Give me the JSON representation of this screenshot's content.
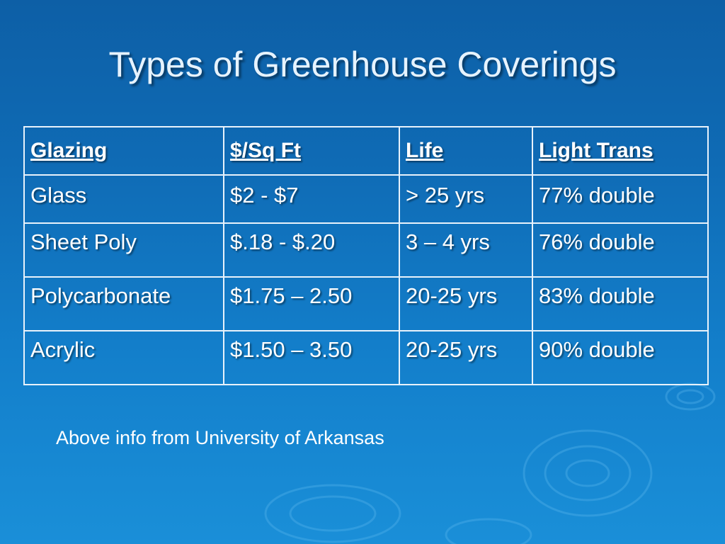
{
  "slide": {
    "title": "Types of Greenhouse Coverings",
    "note": "Above info from University of Arkansas"
  },
  "table": {
    "headers": [
      "Glazing",
      "$/Sq Ft",
      "Life",
      "Light Trans"
    ],
    "rows": [
      [
        "Glass",
        "$2 - $7",
        "> 25 yrs",
        "77% double"
      ],
      [
        "Sheet Poly",
        "$.18 - $.20",
        "3 – 4 yrs",
        "76% double"
      ],
      [
        "Polycarbonate",
        "$1.75 – 2.50",
        "20-25 yrs",
        "83% double"
      ],
      [
        "Acrylic",
        "$1.50 – 3.50",
        "20-25 yrs",
        "90% double"
      ]
    ]
  },
  "colors": {
    "background_top": "#0d5fa6",
    "background_bottom": "#1a8fd8",
    "table_border": "#e8f2fb",
    "title_text": "#e6f3ff"
  }
}
